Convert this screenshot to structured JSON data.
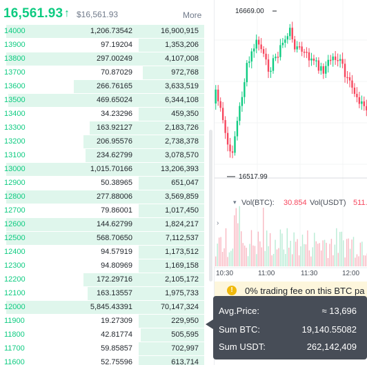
{
  "header": {
    "last_price": "16,561.93",
    "arrow": "↑",
    "mark_price": "$16,561.93",
    "more": "More"
  },
  "order_book": {
    "rows": [
      {
        "price": "14000",
        "amount": "1,206.73542",
        "total": "16,900,915",
        "depth": 0.97
      },
      {
        "price": "13900",
        "amount": "97.19204",
        "total": "1,353,206",
        "depth": 0.32
      },
      {
        "price": "13800",
        "amount": "297.00249",
        "total": "4,107,008",
        "depth": 0.97
      },
      {
        "price": "13700",
        "amount": "70.87029",
        "total": "972,768",
        "depth": 0.3
      },
      {
        "price": "13600",
        "amount": "266.76165",
        "total": "3,633,519",
        "depth": 0.64
      },
      {
        "price": "13500",
        "amount": "469.65024",
        "total": "6,344,108",
        "depth": 0.96
      },
      {
        "price": "13400",
        "amount": "34.23296",
        "total": "459,350",
        "depth": 0.32
      },
      {
        "price": "13300",
        "amount": "163.92127",
        "total": "2,183,726",
        "depth": 0.56
      },
      {
        "price": "13200",
        "amount": "206.95576",
        "total": "2,738,378",
        "depth": 0.59
      },
      {
        "price": "13100",
        "amount": "234.62799",
        "total": "3,078,570",
        "depth": 0.58
      },
      {
        "price": "13000",
        "amount": "1,015.70166",
        "total": "13,206,393",
        "depth": 0.97
      },
      {
        "price": "12900",
        "amount": "50.38965",
        "total": "651,047",
        "depth": 0.32
      },
      {
        "price": "12800",
        "amount": "277.88006",
        "total": "3,569,859",
        "depth": 0.97
      },
      {
        "price": "12700",
        "amount": "79.86001",
        "total": "1,017,450",
        "depth": 0.32
      },
      {
        "price": "12600",
        "amount": "144.62799",
        "total": "1,824,217",
        "depth": 0.97
      },
      {
        "price": "12500",
        "amount": "568.70650",
        "total": "7,112,537",
        "depth": 0.97
      },
      {
        "price": "12400",
        "amount": "94.57919",
        "total": "1,173,512",
        "depth": 0.32
      },
      {
        "price": "12300",
        "amount": "94.80969",
        "total": "1,169,158",
        "depth": 0.32
      },
      {
        "price": "12200",
        "amount": "172.29716",
        "total": "2,105,172",
        "depth": 0.59
      },
      {
        "price": "12100",
        "amount": "163.13557",
        "total": "1,975,733",
        "depth": 0.57
      },
      {
        "price": "12000",
        "amount": "5,845.43391",
        "total": "70,147,324",
        "depth": 0.97
      },
      {
        "price": "11900",
        "amount": "19.27309",
        "total": "229,950",
        "depth": 0.32
      },
      {
        "price": "11800",
        "amount": "42.81774",
        "total": "505,595",
        "depth": 0.31
      },
      {
        "price": "11700",
        "amount": "59.85857",
        "total": "702,997",
        "depth": 0.32
      },
      {
        "price": "11600",
        "amount": "52.75596",
        "total": "613,714",
        "depth": 0.32
      }
    ]
  },
  "chart": {
    "high_label": "16669.00",
    "low_label": "16517.99",
    "high": 16669.0,
    "low": 16517.99,
    "up_color": "#0ecb81",
    "down_color": "#f6465d",
    "volume": {
      "chevron": "▾",
      "btc_label": "Vol(BTC):",
      "btc_value": "30.854",
      "usdt_label": "Vol(USDT)",
      "usdt_value": "511.",
      "side_icon": "›"
    },
    "time_labels": [
      "10:30",
      "11:00",
      "11:30",
      "12:00"
    ]
  },
  "notice": {
    "icon": "!",
    "text": "0% trading fee on this BTC pa"
  },
  "tooltip": {
    "avg_label": "Avg.Price:",
    "avg_value": "≈ 13,696",
    "sum_btc_label": "Sum BTC:",
    "sum_btc_value": "19,140.55082",
    "sum_usdt_label": "Sum USDT:",
    "sum_usdt_value": "262,142,409"
  }
}
